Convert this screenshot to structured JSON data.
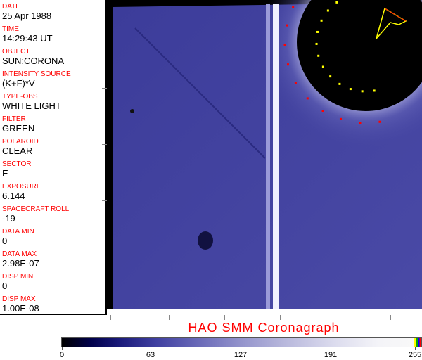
{
  "metadata": [
    {
      "label": "DATE",
      "value": "25 Apr 1988"
    },
    {
      "label": "TIME",
      "value": "14:29:43 UT"
    },
    {
      "label": "OBJECT",
      "value": "SUN:CORONA"
    },
    {
      "label": "INTENSITY SOURCE",
      "value": "(K+F)*V"
    },
    {
      "label": "TYPE-OBS",
      "value": "WHITE LIGHT"
    },
    {
      "label": "FILTER",
      "value": "GREEN"
    },
    {
      "label": "POLAROID",
      "value": "CLEAR"
    },
    {
      "label": "SECTOR",
      "value": "E"
    },
    {
      "label": "EXPOSURE",
      "value": "6.144"
    },
    {
      "label": "SPACECRAFT ROLL",
      "value": "-19"
    },
    {
      "label": "DATA MIN",
      "value": "0"
    },
    {
      "label": "DATA MAX",
      "value": "2.98E-07"
    },
    {
      "label": "DISP MIN",
      "value": "0"
    },
    {
      "label": "DISP MAX",
      "value": "1.00E-08"
    }
  ],
  "title": "HAO  SMM Coronagraph",
  "colorbar": {
    "labels": [
      "0",
      "63",
      "127",
      "191",
      "255"
    ],
    "colors": {
      "low": "#000000",
      "mid": "#6a6ab8",
      "high": "#f8f8f8",
      "overflow": [
        "#ffff00",
        "#00aa00",
        "#0000ff",
        "#ff0000"
      ]
    }
  }
}
